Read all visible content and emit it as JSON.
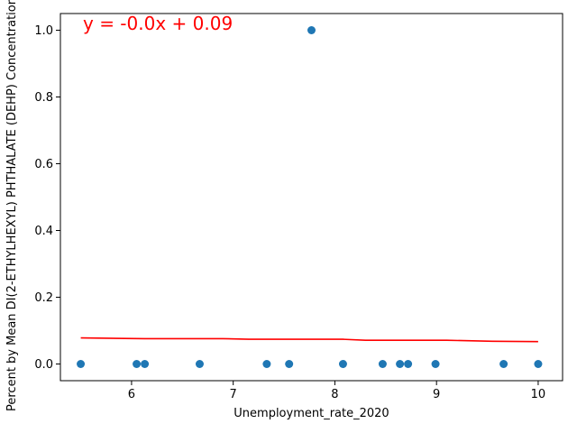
{
  "chart_data": {
    "type": "scatter",
    "xlabel": "Unemployment_rate_2020",
    "ylabel": "Percent by Mean DI(2-ETHYLHEXYL) PHTHALATE (DEHP) Concentration >",
    "xlim": [
      5.3,
      10.24
    ],
    "ylim": [
      -0.05,
      1.05
    ],
    "xticks": [
      6,
      7,
      8,
      9,
      10
    ],
    "xtick_labels": [
      "6",
      "7",
      "8",
      "9",
      "10"
    ],
    "yticks": [
      0.0,
      0.2,
      0.4,
      0.6,
      0.8,
      1.0
    ],
    "ytick_labels": [
      "0.0",
      "0.2",
      "0.4",
      "0.6",
      "0.8",
      "1.0"
    ],
    "grid": false,
    "points": {
      "x": [
        5.5,
        6.05,
        6.13,
        6.67,
        7.33,
        7.55,
        7.77,
        8.08,
        8.47,
        8.64,
        8.72,
        8.99,
        9.66,
        10.0
      ],
      "y": [
        0,
        0,
        0,
        0,
        0,
        0,
        1.0,
        0,
        0,
        0,
        0,
        0,
        0,
        0
      ]
    },
    "fit_line": {
      "x": [
        5.5,
        6.13,
        6.9,
        7.15,
        8.08,
        8.3,
        9.1,
        9.55,
        10.0
      ],
      "y": [
        0.078,
        0.076,
        0.076,
        0.074,
        0.074,
        0.071,
        0.071,
        0.068,
        0.067
      ]
    },
    "annotation": "y = -0.0x + 0.09",
    "colors": {
      "points": "#1f77b4",
      "fit_line": "#ff0000",
      "annotation": "#ff0000"
    }
  }
}
